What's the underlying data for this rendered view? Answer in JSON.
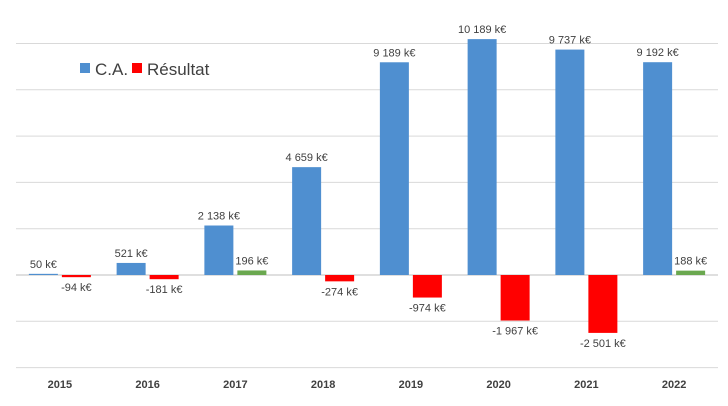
{
  "chart_data": {
    "type": "bar",
    "categories": [
      "2015",
      "2016",
      "2017",
      "2018",
      "2019",
      "2020",
      "2021",
      "2022"
    ],
    "series": [
      {
        "name": "C.A.",
        "color": "#4f8fd0",
        "values": [
          50,
          521,
          2138,
          4659,
          9189,
          10189,
          9737,
          9192
        ],
        "labels": [
          "50 k€",
          "521 k€",
          "2 138 k€",
          "4 659 k€",
          "9 189 k€",
          "10 189 k€",
          "9 737 k€",
          "9 192 k€"
        ]
      },
      {
        "name": "Résultat",
        "color": "#ff0000",
        "positive_color": "#6aa84f",
        "values": [
          -94,
          -181,
          196,
          -274,
          -974,
          -1967,
          -2501,
          188
        ],
        "labels": [
          "-94 k€",
          "-181 k€",
          "196 k€",
          "-274 k€",
          "-974 k€",
          "-1 967 k€",
          "-2 501 k€",
          "188 k€"
        ]
      }
    ],
    "ylim": [
      -4000,
      10500
    ],
    "gridlines": [
      -4000,
      -2000,
      0,
      2000,
      4000,
      6000,
      8000,
      10000
    ],
    "title": "",
    "xlabel": "",
    "ylabel": "",
    "legend": [
      "C.A.",
      "Résultat"
    ],
    "legend_position": "top-left"
  }
}
